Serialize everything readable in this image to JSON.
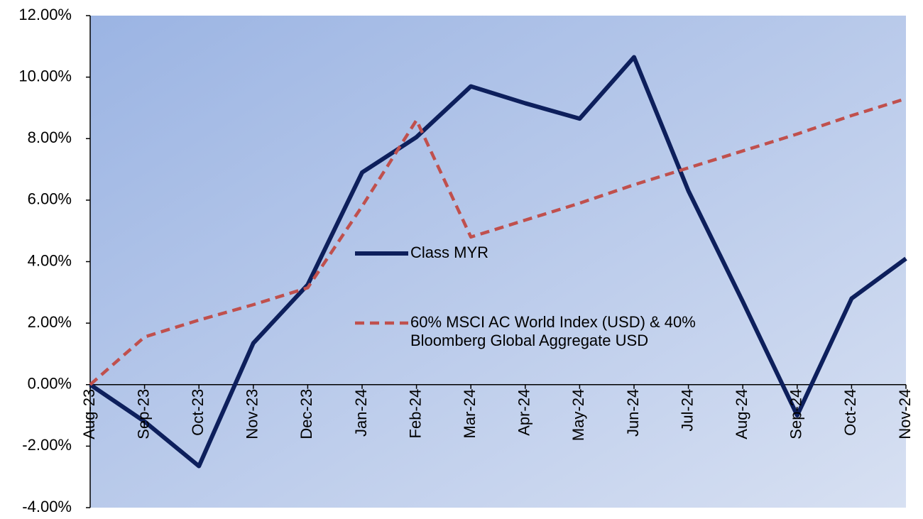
{
  "chart_data": {
    "type": "line",
    "categories": [
      "Aug-23",
      "Sep-23",
      "Oct-23",
      "Nov-23",
      "Dec-23",
      "Jan-24",
      "Feb-24",
      "Mar-24",
      "Apr-24",
      "May-24",
      "Jun-24",
      "Jul-24",
      "Aug-24",
      "Sep-24",
      "Oct-24",
      "Nov-24"
    ],
    "series": [
      {
        "name": "Class MYR",
        "color": "#0d1f5c",
        "dash": false,
        "values": [
          0,
          -1.2,
          -2.65,
          1.35,
          3.25,
          6.9,
          8.05,
          9.7,
          9.15,
          8.65,
          10.65,
          6.3,
          2.7,
          -1.0,
          2.8,
          4.1
        ]
      },
      {
        "name": "60% MSCI AC World Index (USD) & 40% Bloomberg Global Aggregate USD",
        "color": "#c0504d",
        "dash": true,
        "values": [
          0,
          1.55,
          2.1,
          2.6,
          3.15,
          5.8,
          8.6,
          4.8,
          5.35,
          5.9,
          6.5,
          7.05,
          7.6,
          8.15,
          8.75,
          9.3
        ]
      }
    ],
    "ylim": [
      -4,
      12
    ],
    "yticks": [
      {
        "value": -4,
        "label": "-4.00%"
      },
      {
        "value": -2,
        "label": "-2.00%"
      },
      {
        "value": 0,
        "label": "0.00%"
      },
      {
        "value": 2,
        "label": "2.00%"
      },
      {
        "value": 4,
        "label": "4.00%"
      },
      {
        "value": 6,
        "label": "6.00%"
      },
      {
        "value": 8,
        "label": "8.00%"
      },
      {
        "value": 10,
        "label": "10.00%"
      },
      {
        "value": 12,
        "label": "12.00%"
      }
    ],
    "grid": false,
    "legend": "center"
  }
}
